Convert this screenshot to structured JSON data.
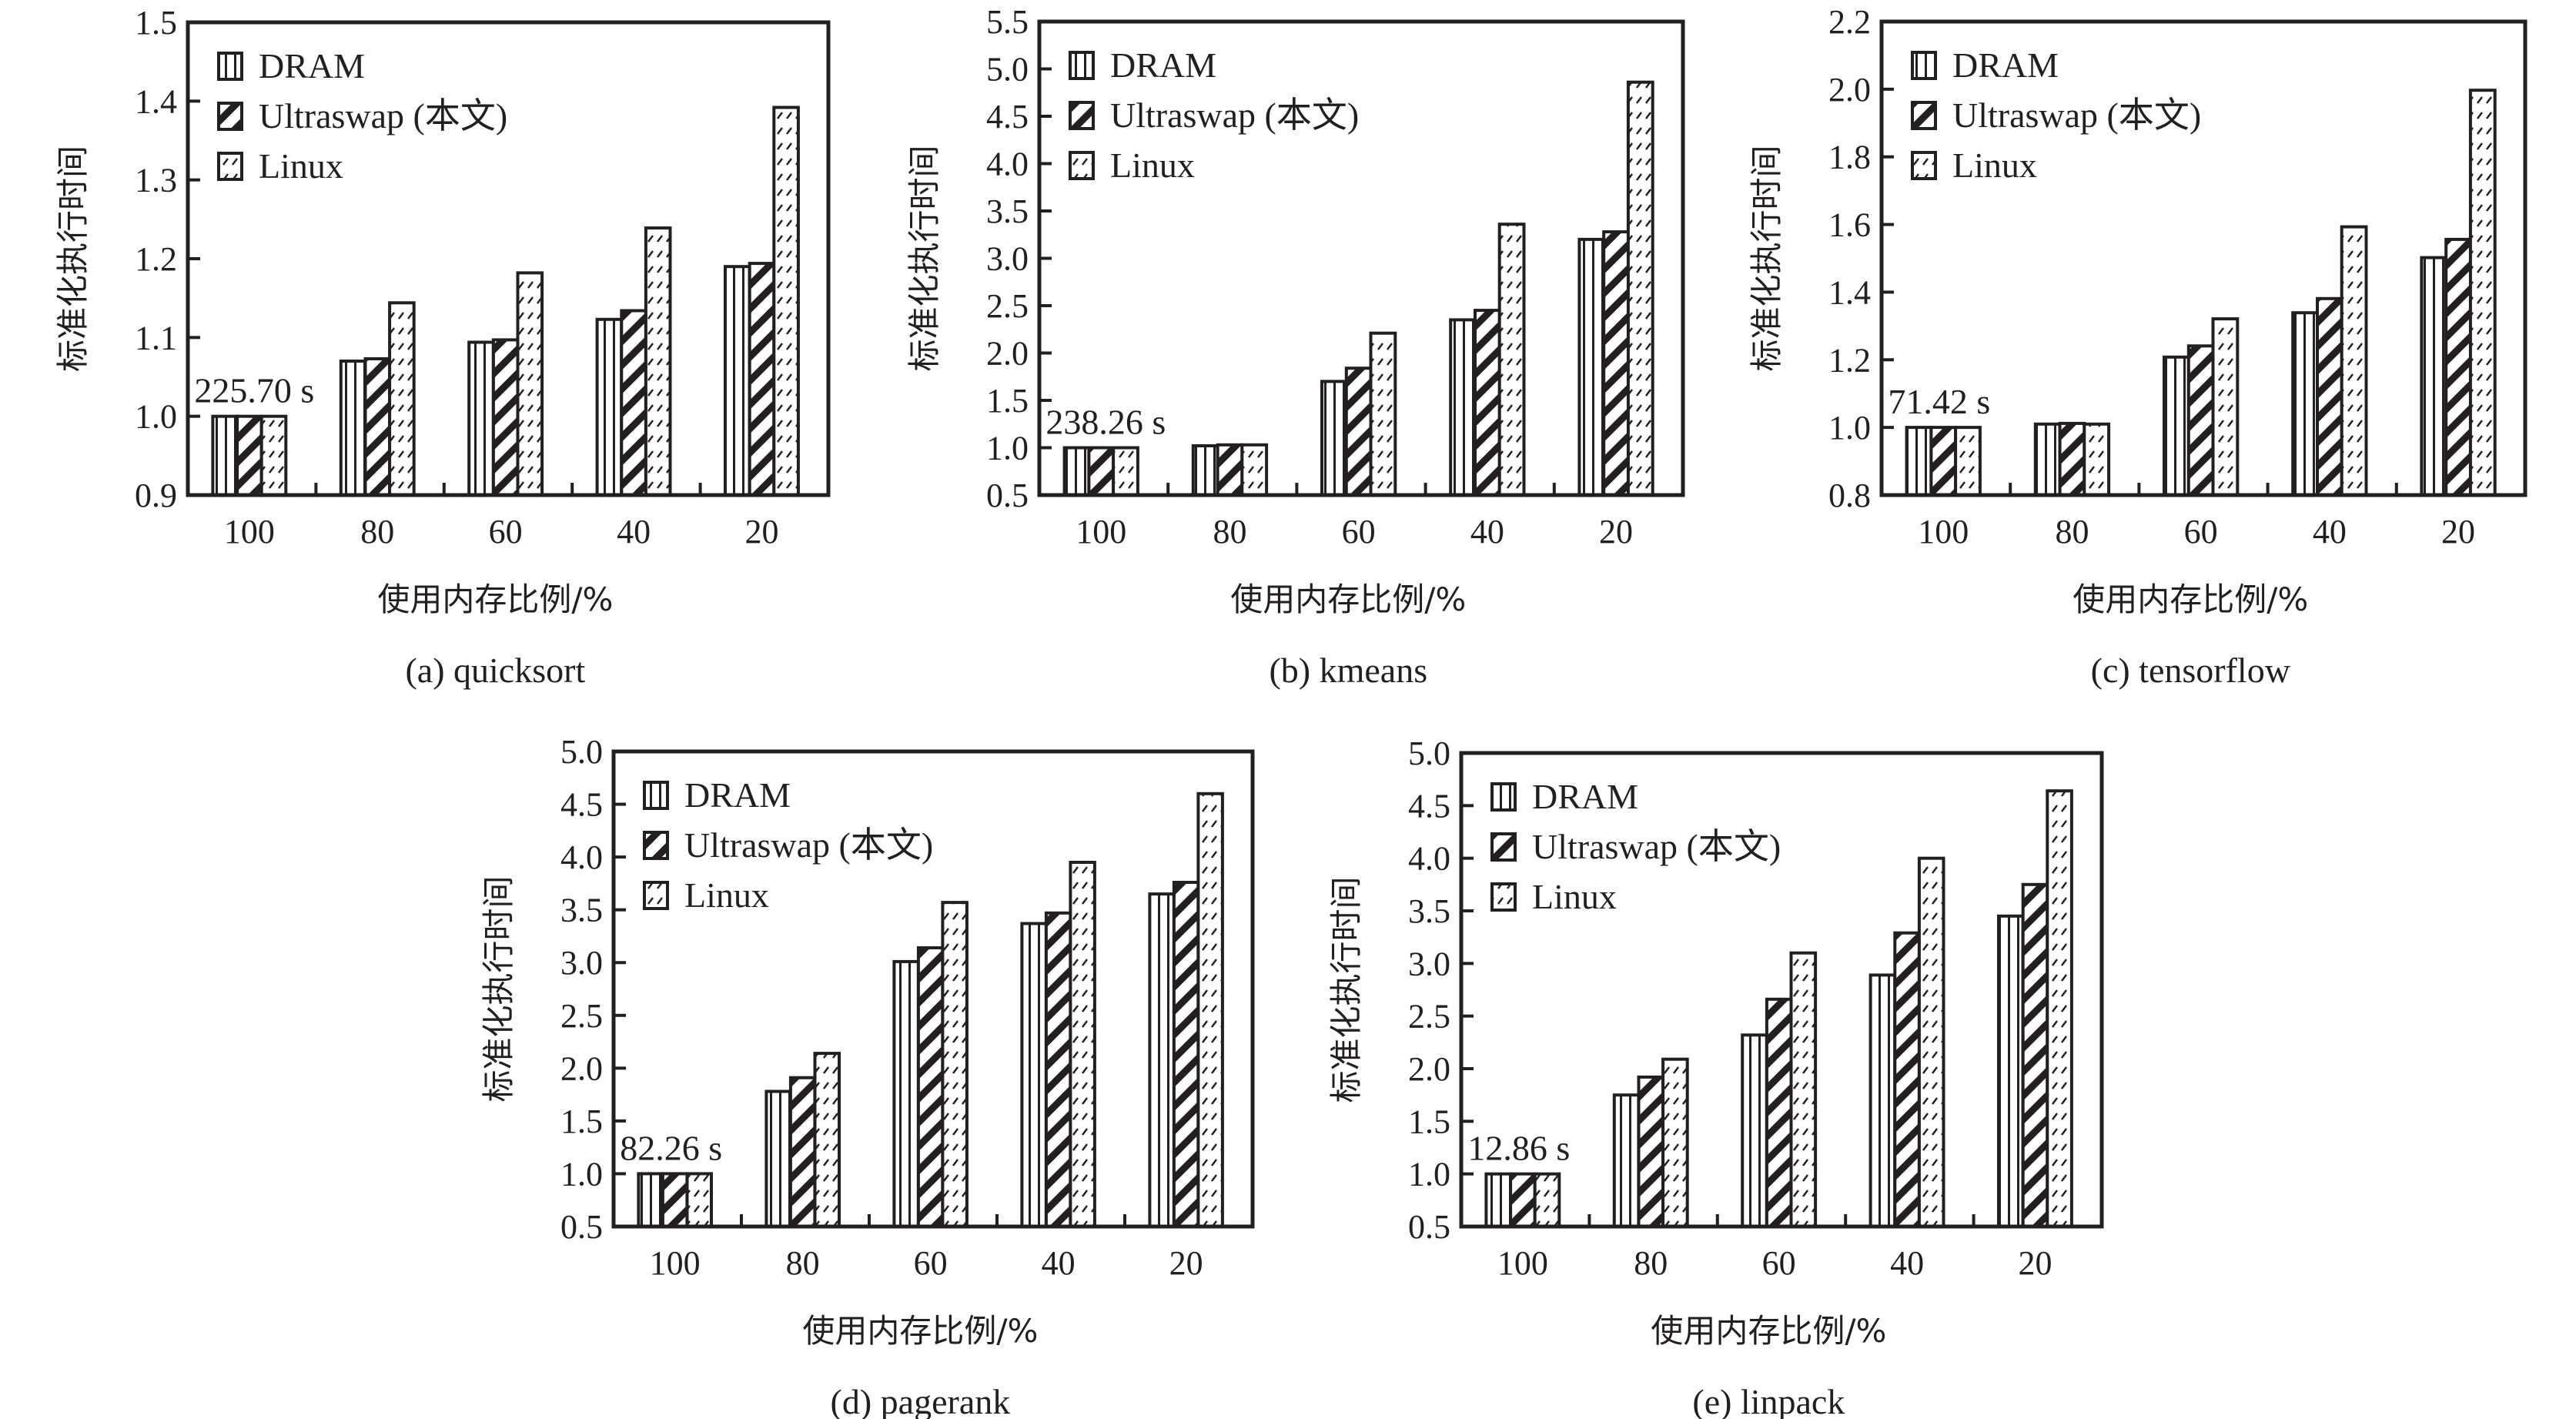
{
  "figure": {
    "panels_count": 5
  },
  "legend": [
    {
      "name": "DRAM",
      "pattern": "vertical-lines"
    },
    {
      "name": "Ultraswap (本文)",
      "pattern": "bold-diagonal"
    },
    {
      "name": "Linux",
      "pattern": "dashed-diagonal"
    }
  ],
  "chart_data": [
    {
      "type": "bar",
      "title": "(a)  quicksort",
      "xlabel": "使用内存比例/%",
      "ylabel": "标准化执行时间",
      "categories": [
        "100",
        "80",
        "60",
        "40",
        "20"
      ],
      "ylim": [
        0.9,
        1.5
      ],
      "yticks": [
        "0.9",
        "1.0",
        "1.1",
        "1.2",
        "1.3",
        "1.4",
        "1.5"
      ],
      "annotation": "225.70 s",
      "legend_position": "top-left",
      "series": [
        {
          "name": "DRAM",
          "values": [
            1.0,
            1.07,
            1.094,
            1.123,
            1.19
          ]
        },
        {
          "name": "Ultraswap (本文)",
          "values": [
            1.0,
            1.073,
            1.097,
            1.134,
            1.194
          ]
        },
        {
          "name": "Linux",
          "values": [
            1.0,
            1.144,
            1.182,
            1.239,
            1.392
          ]
        }
      ]
    },
    {
      "type": "bar",
      "title": "(b)  kmeans",
      "xlabel": "使用内存比例/%",
      "ylabel": "标准化执行时间",
      "categories": [
        "100",
        "80",
        "60",
        "40",
        "20"
      ],
      "ylim": [
        0.5,
        5.5
      ],
      "yticks": [
        "0.5",
        "1.0",
        "1.5",
        "2.0",
        "2.5",
        "3.0",
        "3.5",
        "4.0",
        "4.5",
        "5.0",
        "5.5"
      ],
      "annotation": "238.26 s",
      "legend_position": "top-left",
      "series": [
        {
          "name": "DRAM",
          "values": [
            1.0,
            1.02,
            1.7,
            2.35,
            3.2
          ]
        },
        {
          "name": "Ultraswap (本文)",
          "values": [
            1.0,
            1.03,
            1.84,
            2.45,
            3.28
          ]
        },
        {
          "name": "Linux",
          "values": [
            1.0,
            1.03,
            2.21,
            3.36,
            4.86
          ]
        }
      ]
    },
    {
      "type": "bar",
      "title": "(c)  tensorflow",
      "xlabel": "使用内存比例/%",
      "ylabel": "标准化执行时间",
      "categories": [
        "100",
        "80",
        "60",
        "40",
        "20"
      ],
      "ylim": [
        0.8,
        2.2
      ],
      "yticks": [
        "0.8",
        "1.0",
        "1.2",
        "1.4",
        "1.6",
        "1.8",
        "2.0",
        "2.2"
      ],
      "annotation": "71.42 s",
      "legend_position": "top-left",
      "series": [
        {
          "name": "DRAM",
          "values": [
            1.0,
            1.01,
            1.208,
            1.339,
            1.502
          ]
        },
        {
          "name": "Ultraswap (本文)",
          "values": [
            1.0,
            1.012,
            1.241,
            1.381,
            1.556
          ]
        },
        {
          "name": "Linux",
          "values": [
            1.0,
            1.01,
            1.321,
            1.593,
            1.997
          ]
        }
      ]
    },
    {
      "type": "bar",
      "title": "(d)  pagerank",
      "xlabel": "使用内存比例/%",
      "ylabel": "标准化执行时间",
      "categories": [
        "100",
        "80",
        "60",
        "40",
        "20"
      ],
      "ylim": [
        0.5,
        5.0
      ],
      "yticks": [
        "0.5",
        "1.0",
        "1.5",
        "2.0",
        "2.5",
        "3.0",
        "3.5",
        "4.0",
        "4.5",
        "5.0"
      ],
      "annotation": "82.26 s",
      "legend_position": "top-left",
      "series": [
        {
          "name": "DRAM",
          "values": [
            1.0,
            1.78,
            3.01,
            3.37,
            3.65
          ]
        },
        {
          "name": "Ultraswap (本文)",
          "values": [
            1.0,
            1.91,
            3.14,
            3.47,
            3.76
          ]
        },
        {
          "name": "Linux",
          "values": [
            1.0,
            2.14,
            3.57,
            3.95,
            4.6
          ]
        }
      ]
    },
    {
      "type": "bar",
      "title": "(e)  linpack",
      "xlabel": "使用内存比例/%",
      "ylabel": "标准化执行时间",
      "categories": [
        "100",
        "80",
        "60",
        "40",
        "20"
      ],
      "ylim": [
        0.5,
        5.0
      ],
      "yticks": [
        "0.5",
        "1.0",
        "1.5",
        "2.0",
        "2.5",
        "3.0",
        "3.5",
        "4.0",
        "4.5",
        "5.0"
      ],
      "annotation": "12.86 s",
      "legend_position": "top-left",
      "series": [
        {
          "name": "DRAM",
          "values": [
            1.0,
            1.75,
            2.32,
            2.89,
            3.45
          ]
        },
        {
          "name": "Ultraswap (本文)",
          "values": [
            1.0,
            1.92,
            2.66,
            3.29,
            3.75
          ]
        },
        {
          "name": "Linux",
          "values": [
            1.0,
            2.09,
            3.1,
            4.0,
            4.64
          ]
        }
      ]
    }
  ]
}
